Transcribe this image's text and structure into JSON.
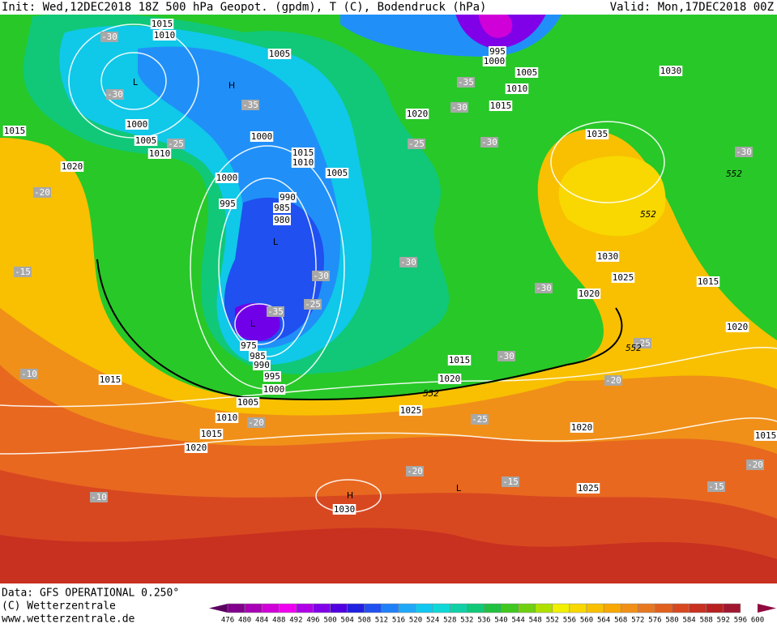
{
  "header": {
    "left": "Init: Wed,12DEC2018 18Z 500 hPa Geopot. (gpdm), T (C), Bodendruck (hPa)",
    "right": "Valid: Mon,17DEC2018 00Z"
  },
  "footer": {
    "line1": "Data: GFS OPERATIONAL 0.250°",
    "line2": "(C) Wetterzentrale",
    "line3": "www.wetterzentrale.de"
  },
  "colorbar": {
    "labels": [
      476,
      480,
      484,
      488,
      492,
      496,
      500,
      504,
      508,
      512,
      516,
      520,
      524,
      528,
      532,
      536,
      540,
      544,
      548,
      552,
      556,
      560,
      564,
      568,
      572,
      576,
      580,
      584,
      588,
      592,
      596,
      600
    ],
    "colors": [
      "#5a0060",
      "#80008c",
      "#a800b4",
      "#d000d8",
      "#f000f0",
      "#b000e8",
      "#8000e8",
      "#5000e0",
      "#2020e0",
      "#2050f0",
      "#2080f8",
      "#20a8f8",
      "#10c8f0",
      "#10d8d8",
      "#10d0a8",
      "#10c878",
      "#20c040",
      "#40c820",
      "#70d010",
      "#b0e000",
      "#f0f000",
      "#f8d800",
      "#f8c000",
      "#f8a800",
      "#f09018",
      "#e87820",
      "#e06020",
      "#d84820",
      "#c83020",
      "#b82020",
      "#a01830",
      "#900a40"
    ]
  },
  "map": {
    "labels": [
      "1015",
      "1010",
      "-30",
      "1005",
      "995",
      "1000",
      "1005",
      "1030",
      "L",
      "H",
      "-30",
      "-35",
      "-35",
      "1010",
      "-30",
      "1015",
      "1020",
      "1015",
      "1000",
      "1005",
      "-25",
      "1010",
      "1000",
      "-25",
      "-30",
      "1035",
      "-30",
      "552",
      "1015",
      "1010",
      "1005",
      "1020",
      "-20",
      "1000",
      "990",
      "995",
      "985",
      "980",
      "552",
      "L",
      "-30",
      "1030",
      "1025",
      "-15",
      "-30",
      "-30",
      "1020",
      "1015",
      "-25",
      "-35",
      "L",
      "1020",
      "975",
      "985",
      "990",
      "995",
      "-25",
      "552",
      "-30",
      "1015",
      "-10",
      "1015",
      "1020",
      "-20",
      "1000",
      "552",
      "1005",
      "1025",
      "1010",
      "-20",
      "-25",
      "1020",
      "1015",
      "1015",
      "1020",
      "-20",
      "-20",
      "-15",
      "1025",
      "-15",
      "-10",
      "H",
      "1030",
      "L"
    ]
  }
}
